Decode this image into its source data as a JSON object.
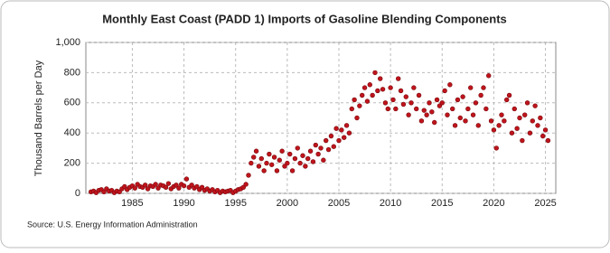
{
  "chart_data": {
    "type": "scatter",
    "title": "Monthly East Coast (PADD 1) Imports of Gasoline Blending Components",
    "y_label": "Thousand Barrels per Day",
    "source": "Source: U.S. Energy Information Administration",
    "color": "#c0141c",
    "grid": true,
    "xlim": [
      1980.5,
      2026
    ],
    "xticks": [
      1985,
      1990,
      1995,
      2000,
      2005,
      2010,
      2015,
      2020,
      2025
    ],
    "ylim": [
      0,
      1000
    ],
    "yticks": [
      0,
      200,
      400,
      600,
      800,
      {
        "value": 1000,
        "label": "1,000"
      }
    ],
    "x": [
      1981,
      1981.25,
      1981.5,
      1981.75,
      1982,
      1982.25,
      1982.5,
      1982.75,
      1983,
      1983.25,
      1983.5,
      1983.75,
      1984,
      1984.25,
      1984.5,
      1984.75,
      1985,
      1985.25,
      1985.5,
      1985.75,
      1986,
      1986.25,
      1986.5,
      1986.75,
      1987,
      1987.25,
      1987.5,
      1987.75,
      1988,
      1988.25,
      1988.5,
      1988.75,
      1989,
      1989.25,
      1989.5,
      1989.75,
      1990,
      1990.25,
      1990.5,
      1990.75,
      1991,
      1991.25,
      1991.5,
      1991.75,
      1992,
      1992.25,
      1992.5,
      1992.75,
      1993,
      1993.25,
      1993.5,
      1993.75,
      1994,
      1994.25,
      1994.5,
      1994.75,
      1995,
      1995.25,
      1995.5,
      1995.75,
      1996,
      1996.25,
      1996.5,
      1996.75,
      1997,
      1997.25,
      1997.5,
      1997.75,
      1998,
      1998.25,
      1998.5,
      1998.75,
      1999,
      1999.25,
      1999.5,
      1999.75,
      2000,
      2000.25,
      2000.5,
      2000.75,
      2001,
      2001.25,
      2001.5,
      2001.75,
      2002,
      2002.25,
      2002.5,
      2002.75,
      2003,
      2003.25,
      2003.5,
      2003.75,
      2004,
      2004.25,
      2004.5,
      2004.75,
      2005,
      2005.25,
      2005.5,
      2005.75,
      2006,
      2006.25,
      2006.5,
      2006.75,
      2007,
      2007.25,
      2007.5,
      2007.75,
      2008,
      2008.25,
      2008.5,
      2008.75,
      2009,
      2009.25,
      2009.5,
      2009.75,
      2010,
      2010.25,
      2010.5,
      2010.75,
      2011,
      2011.25,
      2011.5,
      2011.75,
      2012,
      2012.25,
      2012.5,
      2012.75,
      2013,
      2013.25,
      2013.5,
      2013.75,
      2014,
      2014.25,
      2014.5,
      2014.75,
      2015,
      2015.25,
      2015.5,
      2015.75,
      2016,
      2016.25,
      2016.5,
      2016.75,
      2017,
      2017.25,
      2017.5,
      2017.75,
      2018,
      2018.25,
      2018.5,
      2018.75,
      2019,
      2019.25,
      2019.5,
      2019.75,
      2020,
      2020.25,
      2020.5,
      2020.75,
      2021,
      2021.25,
      2021.5,
      2021.75,
      2022,
      2022.25,
      2022.5,
      2022.75,
      2023,
      2023.25,
      2023.5,
      2023.75,
      2024,
      2024.25,
      2024.5,
      2024.75,
      2025,
      2025.25
    ],
    "values": [
      10,
      15,
      5,
      20,
      25,
      10,
      30,
      15,
      20,
      5,
      15,
      10,
      30,
      45,
      25,
      40,
      50,
      35,
      60,
      45,
      40,
      55,
      30,
      50,
      45,
      60,
      35,
      55,
      50,
      40,
      65,
      30,
      45,
      55,
      35,
      60,
      50,
      95,
      40,
      55,
      35,
      45,
      25,
      40,
      20,
      30,
      15,
      25,
      10,
      20,
      5,
      15,
      10,
      15,
      20,
      5,
      15,
      25,
      30,
      40,
      60,
      120,
      200,
      240,
      280,
      180,
      230,
      150,
      200,
      260,
      190,
      240,
      150,
      220,
      280,
      180,
      200,
      260,
      150,
      230,
      300,
      200,
      250,
      180,
      230,
      280,
      210,
      320,
      260,
      300,
      220,
      350,
      290,
      380,
      310,
      430,
      350,
      420,
      370,
      450,
      400,
      560,
      620,
      500,
      580,
      650,
      700,
      610,
      720,
      650,
      800,
      680,
      760,
      690,
      600,
      560,
      700,
      620,
      560,
      760,
      680,
      590,
      640,
      520,
      600,
      700,
      560,
      650,
      480,
      550,
      520,
      600,
      540,
      470,
      620,
      580,
      600,
      680,
      520,
      720,
      560,
      450,
      620,
      500,
      640,
      480,
      560,
      700,
      520,
      600,
      450,
      650,
      700,
      560,
      780,
      480,
      420,
      300,
      450,
      520,
      480,
      620,
      650,
      400,
      560,
      430,
      500,
      350,
      520,
      600,
      400,
      480,
      580,
      450,
      500,
      380,
      420,
      350
    ]
  }
}
